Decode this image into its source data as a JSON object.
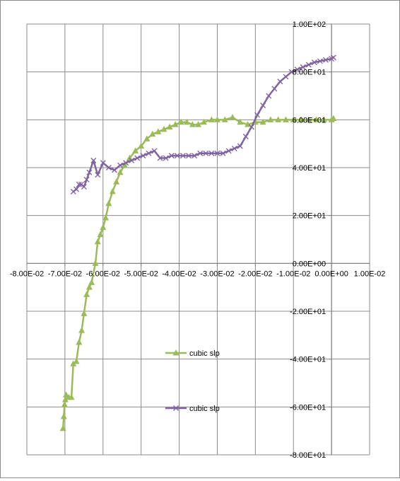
{
  "chart_data": {
    "type": "line",
    "title": "",
    "xlabel": "",
    "ylabel": "",
    "xlim": [
      -0.08,
      0.01
    ],
    "ylim": [
      -80,
      100
    ],
    "x_ticks": [
      "-8.00E-02",
      "-7.00E-02",
      "-6.00E-02",
      "-5.00E-02",
      "-4.00E-02",
      "-3.00E-02",
      "-2.00E-02",
      "-1.00E-02",
      "0.00E+00",
      "1.00E-02"
    ],
    "y_ticks": [
      "1.00E+02",
      "8.00E+01",
      "6.00E+01",
      "4.00E+01",
      "2.00E+01",
      "0.00E+00",
      "-2.00E+01",
      "-4.00E+01",
      "-6.00E+01",
      "-8.00E+01"
    ],
    "grid": "major gridlines on both axes",
    "legend_position": "inside plot, lower-middle",
    "series": [
      {
        "name": "cubic slp",
        "color": "#9bbb59",
        "marker": "triangle",
        "points": [
          [
            -0.0705,
            -69
          ],
          [
            -0.0703,
            -64
          ],
          [
            -0.0701,
            -59
          ],
          [
            -0.0699,
            -57
          ],
          [
            -0.0697,
            -55
          ],
          [
            -0.069,
            -56
          ],
          [
            -0.0683,
            -56
          ],
          [
            -0.0678,
            -42
          ],
          [
            -0.067,
            -41
          ],
          [
            -0.0663,
            -33
          ],
          [
            -0.0656,
            -28
          ],
          [
            -0.065,
            -21
          ],
          [
            -0.0643,
            -13
          ],
          [
            -0.0636,
            -10
          ],
          [
            -0.063,
            -8
          ],
          [
            -0.062,
            0
          ],
          [
            -0.0614,
            9
          ],
          [
            -0.0607,
            12
          ],
          [
            -0.06,
            15
          ],
          [
            -0.0593,
            19
          ],
          [
            -0.0585,
            25
          ],
          [
            -0.0575,
            30
          ],
          [
            -0.0565,
            34
          ],
          [
            -0.0555,
            38
          ],
          [
            -0.0543,
            41
          ],
          [
            -0.053,
            44
          ],
          [
            -0.0515,
            47
          ],
          [
            -0.05,
            49
          ],
          [
            -0.0485,
            52
          ],
          [
            -0.047,
            54
          ],
          [
            -0.0455,
            55
          ],
          [
            -0.044,
            56
          ],
          [
            -0.0425,
            57
          ],
          [
            -0.041,
            58
          ],
          [
            -0.0395,
            59
          ],
          [
            -0.038,
            59
          ],
          [
            -0.0365,
            58
          ],
          [
            -0.035,
            58
          ],
          [
            -0.0335,
            59
          ],
          [
            -0.0315,
            60
          ],
          [
            -0.03,
            60
          ],
          [
            -0.028,
            60
          ],
          [
            -0.026,
            61
          ],
          [
            -0.024,
            59
          ],
          [
            -0.022,
            58
          ],
          [
            -0.02,
            59
          ],
          [
            -0.018,
            59
          ],
          [
            -0.016,
            60
          ],
          [
            -0.014,
            60
          ],
          [
            -0.012,
            60
          ],
          [
            -0.01,
            60
          ],
          [
            -0.008,
            60
          ],
          [
            -0.006,
            60
          ],
          [
            -0.004,
            60
          ],
          [
            -0.002,
            60
          ],
          [
            0.0,
            60
          ],
          [
            0.0005,
            60.5
          ]
        ]
      },
      {
        "name": "cubic slp",
        "color": "#8064a2",
        "marker": "x",
        "points": [
          [
            -0.0678,
            30
          ],
          [
            -0.067,
            31
          ],
          [
            -0.0663,
            33
          ],
          [
            -0.0657,
            33
          ],
          [
            -0.065,
            32
          ],
          [
            -0.0643,
            35
          ],
          [
            -0.0636,
            38
          ],
          [
            -0.0625,
            43
          ],
          [
            -0.0614,
            37
          ],
          [
            -0.06,
            42
          ],
          [
            -0.0585,
            40
          ],
          [
            -0.057,
            39
          ],
          [
            -0.0555,
            41
          ],
          [
            -0.054,
            42
          ],
          [
            -0.0525,
            43
          ],
          [
            -0.051,
            44
          ],
          [
            -0.0495,
            45
          ],
          [
            -0.048,
            46
          ],
          [
            -0.0465,
            47
          ],
          [
            -0.045,
            44
          ],
          [
            -0.0435,
            44
          ],
          [
            -0.042,
            45
          ],
          [
            -0.0405,
            45
          ],
          [
            -0.039,
            45
          ],
          [
            -0.0375,
            45
          ],
          [
            -0.036,
            45
          ],
          [
            -0.0345,
            46
          ],
          [
            -0.033,
            46
          ],
          [
            -0.0315,
            46
          ],
          [
            -0.03,
            46
          ],
          [
            -0.0285,
            46
          ],
          [
            -0.027,
            47
          ],
          [
            -0.0255,
            48
          ],
          [
            -0.024,
            49
          ],
          [
            -0.0225,
            53
          ],
          [
            -0.021,
            57
          ],
          [
            -0.0195,
            62
          ],
          [
            -0.018,
            66
          ],
          [
            -0.0165,
            70
          ],
          [
            -0.015,
            73
          ],
          [
            -0.0135,
            76
          ],
          [
            -0.012,
            78
          ],
          [
            -0.0105,
            80
          ],
          [
            -0.009,
            81
          ],
          [
            -0.0075,
            82
          ],
          [
            -0.006,
            83
          ],
          [
            -0.0045,
            84
          ],
          [
            -0.003,
            84.5
          ],
          [
            -0.0015,
            85
          ],
          [
            0.0,
            85.5
          ],
          [
            0.0005,
            86
          ]
        ]
      }
    ]
  }
}
